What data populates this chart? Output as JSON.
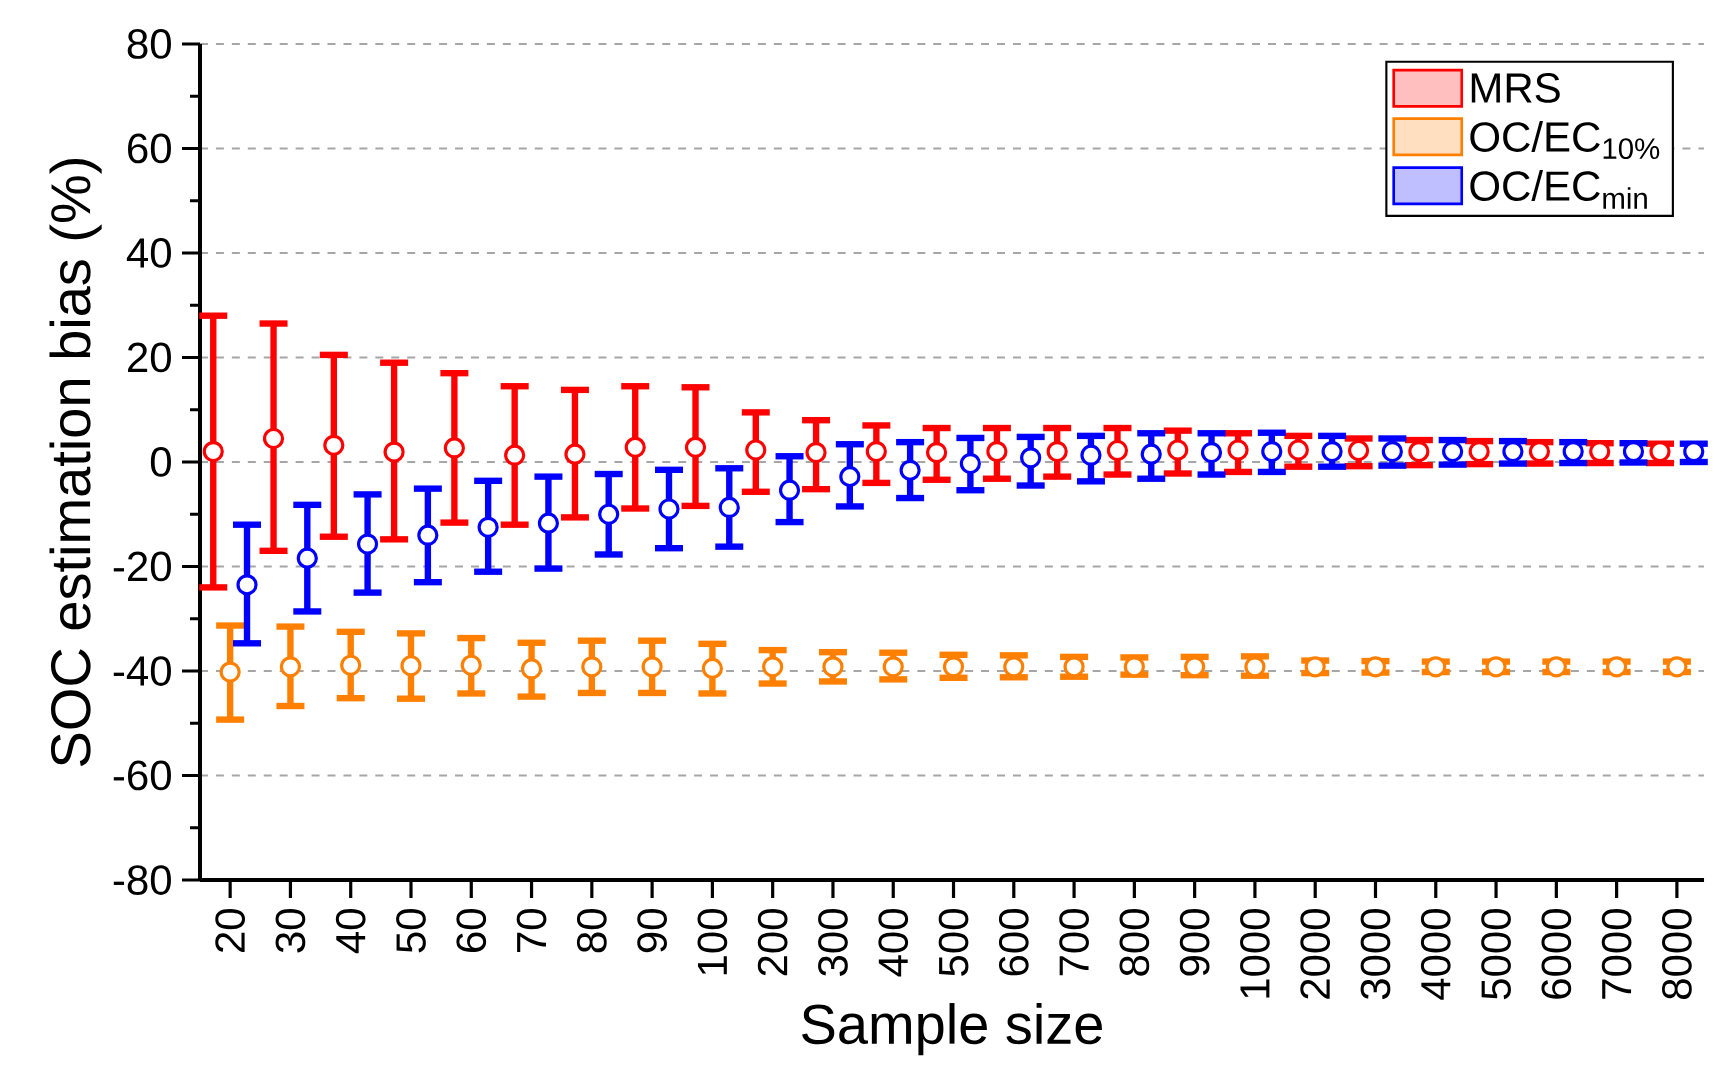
{
  "chart_data": {
    "type": "scatter",
    "xlabel": "Sample size",
    "ylabel": "SOC estimation bias (%)",
    "categories": [
      "20",
      "30",
      "40",
      "50",
      "60",
      "70",
      "80",
      "90",
      "100",
      "200",
      "300",
      "400",
      "500",
      "600",
      "700",
      "800",
      "900",
      "1000",
      "2000",
      "3000",
      "4000",
      "5000",
      "6000",
      "7000",
      "8000"
    ],
    "ylim": [
      -80,
      80
    ],
    "yticks": [
      -80,
      -60,
      -40,
      -20,
      0,
      20,
      40,
      60,
      80
    ],
    "grid": "y",
    "legend": "top right",
    "marker": "circle",
    "series": [
      {
        "name": "MRS",
        "color": "#ff0000",
        "values": [
          2,
          4.5,
          3.2,
          1.9,
          2.7,
          1.3,
          1.5,
          2.8,
          2.8,
          2.3,
          1.8,
          2.0,
          1.8,
          2.0,
          2.0,
          2.2,
          2.3,
          2.3,
          2.3,
          2.2,
          2.0,
          2.0,
          2.0,
          2.0,
          2.0
        ],
        "errors": [
          [
            -24,
            28
          ],
          [
            -17,
            26.5
          ],
          [
            -14.3,
            20.5
          ],
          [
            -14.8,
            19
          ],
          [
            -11.6,
            17
          ],
          [
            -12,
            14.5
          ],
          [
            -10.6,
            13.8
          ],
          [
            -8.9,
            14.5
          ],
          [
            -8.4,
            14.3
          ],
          [
            -5.7,
            9.5
          ],
          [
            -5.2,
            8
          ],
          [
            -4,
            7
          ],
          [
            -3.4,
            6.5
          ],
          [
            -3.2,
            6.5
          ],
          [
            -2.8,
            6.5
          ],
          [
            -2.4,
            6.5
          ],
          [
            -2.2,
            6
          ],
          [
            -1.9,
            5.5
          ],
          [
            -0.9,
            5
          ],
          [
            -0.8,
            4.5
          ],
          [
            -0.6,
            4.2
          ],
          [
            -0.4,
            4
          ],
          [
            -0.3,
            3.8
          ],
          [
            -0.2,
            3.6
          ],
          [
            -0.2,
            3.5
          ]
        ]
      },
      {
        "name": "OC/EC$_{10%}$",
        "color": "#ff8000",
        "values": [
          -40.2,
          -39.2,
          -38.9,
          -39,
          -38.9,
          -39.6,
          -39.2,
          -39.2,
          -39.5,
          -39.2,
          -39.2,
          -39.2,
          -39.2,
          -39.2,
          -39.2,
          -39.2,
          -39.2,
          -39.2,
          -39.2,
          -39.2,
          -39.2,
          -39.2,
          -39.2,
          -39.2,
          -39.2
        ],
        "errors": [
          [
            -49.3,
            -31.3
          ],
          [
            -46.7,
            -31.5
          ],
          [
            -45.2,
            -32.5
          ],
          [
            -45.3,
            -32.8
          ],
          [
            -44.3,
            -33.7
          ],
          [
            -44.9,
            -34.6
          ],
          [
            -44.2,
            -34.2
          ],
          [
            -44.2,
            -34.2
          ],
          [
            -44.3,
            -34.8
          ],
          [
            -42.4,
            -36
          ],
          [
            -42,
            -36.4
          ],
          [
            -41.6,
            -36.5
          ],
          [
            -41.3,
            -36.9
          ],
          [
            -41.2,
            -37
          ],
          [
            -41.1,
            -37.3
          ],
          [
            -40.7,
            -37.4
          ],
          [
            -40.8,
            -37.3
          ],
          [
            -40.9,
            -37.2
          ],
          [
            -40.4,
            -38
          ],
          [
            -40.3,
            -38.1
          ],
          [
            -40.2,
            -38.2
          ],
          [
            -40.2,
            -38.2
          ],
          [
            -40.2,
            -38.2
          ],
          [
            -40.2,
            -38.2
          ],
          [
            -40.2,
            -38.2
          ]
        ]
      },
      {
        "name": "OC/EC$_{min}$",
        "color": "#0000ff",
        "values": [
          -23.5,
          -18.4,
          -15.7,
          -14,
          -12.5,
          -11.7,
          -10,
          -9,
          -8.7,
          -5.4,
          -2.8,
          -1.6,
          -0.3,
          0.8,
          1.3,
          1.5,
          1.8,
          2,
          2,
          2,
          2,
          2,
          2,
          2,
          2
        ],
        "errors": [
          [
            -34.7,
            -12
          ],
          [
            -28.6,
            -8.2
          ],
          [
            -25,
            -6.2
          ],
          [
            -23,
            -5.1
          ],
          [
            -21,
            -3.6
          ],
          [
            -20.4,
            -2.8
          ],
          [
            -17.7,
            -2.3
          ],
          [
            -16.5,
            -1.5
          ],
          [
            -16.2,
            -1.2
          ],
          [
            -11.5,
            1.1
          ],
          [
            -8.5,
            3.4
          ],
          [
            -6.9,
            3.8
          ],
          [
            -5.4,
            4.6
          ],
          [
            -4.5,
            4.8
          ],
          [
            -3.7,
            5
          ],
          [
            -3.2,
            5.5
          ],
          [
            -2.4,
            5.5
          ],
          [
            -1.9,
            5.6
          ],
          [
            -0.9,
            5
          ],
          [
            -0.7,
            4.5
          ],
          [
            -0.5,
            4.2
          ],
          [
            -0.3,
            4
          ],
          [
            -0.2,
            3.8
          ],
          [
            -0.1,
            3.6
          ],
          [
            0,
            3.5
          ]
        ]
      }
    ]
  }
}
